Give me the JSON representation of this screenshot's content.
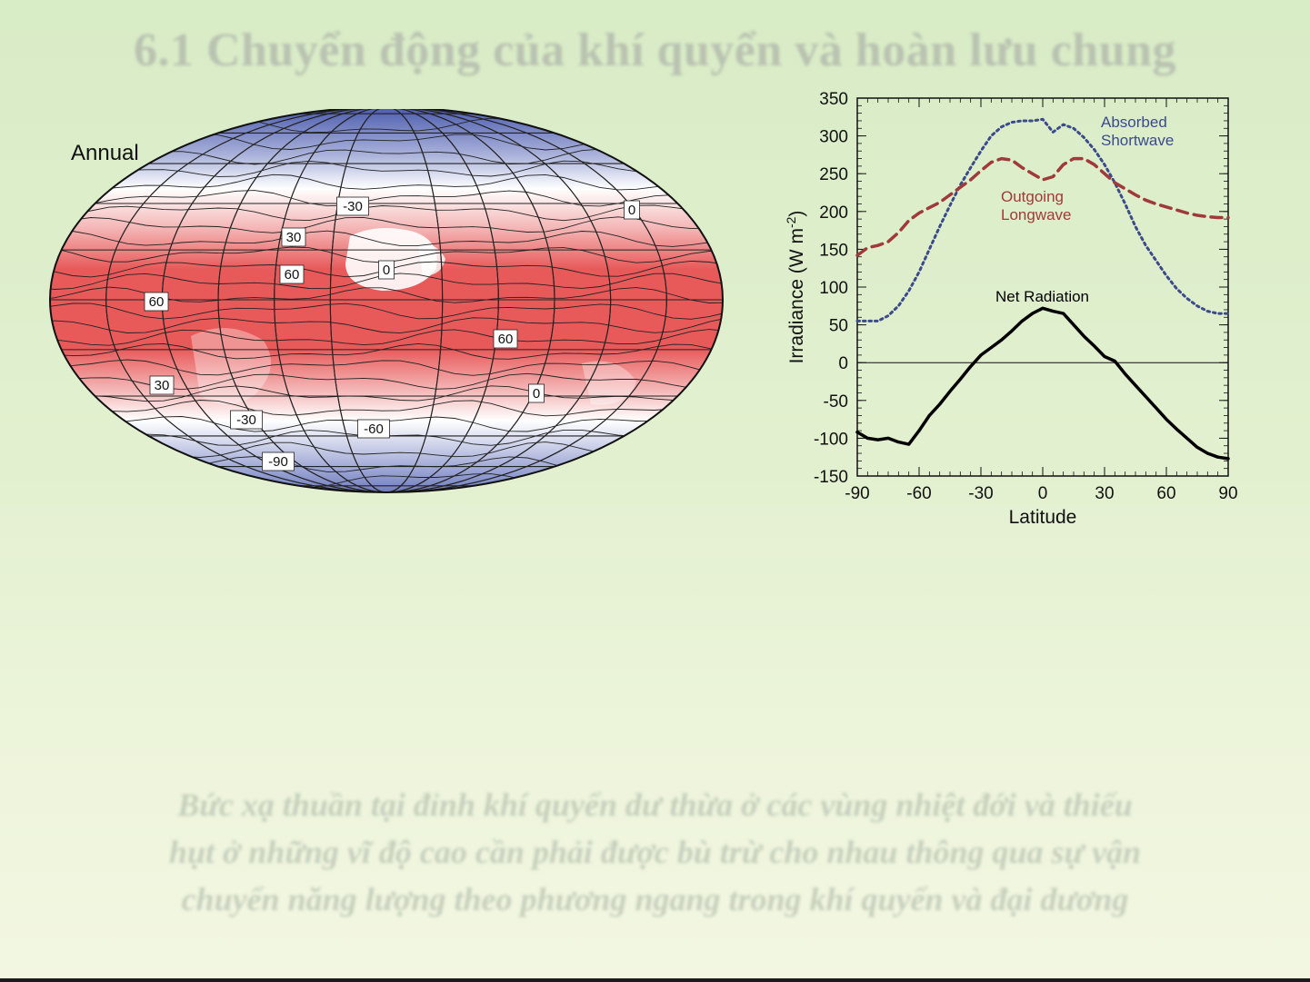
{
  "slide": {
    "title": "6.1 Chuyển động của khí quyển và hoàn lưu chung",
    "caption_lines": [
      "Bức xạ thuần tại đỉnh khí quyển dư thừa ở các vùng nhiệt đới và thiếu",
      "hụt ở những vĩ độ cao cần phải được bù trừ cho nhau thông qua sự vận",
      "chuyển năng lượng theo phương ngang trong khí quyển và đại dương"
    ]
  },
  "map": {
    "title": "Annual",
    "contour_labels": [
      "-30",
      "0",
      "30",
      "60",
      "0",
      "60",
      "60",
      "30",
      "-30",
      "-60",
      "-90",
      "0"
    ],
    "colors": {
      "positive": "#e85a5a",
      "negative": "#4f5fb0",
      "zero": "#ffffff"
    }
  },
  "chart_data": {
    "type": "line",
    "xlabel": "Latitude",
    "ylabel": "Irradiance (W m-2)",
    "xlim": [
      -90,
      90
    ],
    "ylim": [
      -150,
      350
    ],
    "xticks": [
      "-90",
      "-60",
      "-30",
      "0",
      "30",
      "60",
      "90"
    ],
    "yticks": [
      "350",
      "300",
      "250",
      "200",
      "150",
      "100",
      "50",
      "0",
      "-50",
      "-100",
      "-150"
    ],
    "series": [
      {
        "name": "Absorbed Shortwave",
        "label_lines": [
          "Absorbed",
          "Shortwave"
        ],
        "color": "#3c4a8c",
        "style": "dotted",
        "x": [
          -90,
          -80,
          -75,
          -70,
          -65,
          -60,
          -55,
          -50,
          -45,
          -40,
          -35,
          -30,
          -25,
          -20,
          -15,
          -10,
          -5,
          0,
          5,
          10,
          15,
          20,
          25,
          30,
          35,
          40,
          45,
          50,
          55,
          60,
          65,
          70,
          75,
          80,
          85,
          90
        ],
        "y": [
          55,
          55,
          62,
          75,
          95,
          120,
          150,
          180,
          208,
          235,
          258,
          280,
          300,
          312,
          318,
          320,
          320,
          322,
          305,
          315,
          310,
          298,
          282,
          262,
          238,
          210,
          180,
          155,
          135,
          115,
          98,
          85,
          75,
          68,
          65,
          65
        ]
      },
      {
        "name": "Outgoing Longwave",
        "label_lines": [
          "Outgoing",
          "Longwave"
        ],
        "color": "#a03a3a",
        "style": "dashed",
        "x": [
          -90,
          -85,
          -80,
          -75,
          -70,
          -65,
          -60,
          -55,
          -50,
          -45,
          -40,
          -35,
          -30,
          -25,
          -20,
          -15,
          -10,
          -5,
          0,
          5,
          10,
          15,
          20,
          25,
          30,
          35,
          40,
          45,
          50,
          55,
          60,
          65,
          70,
          75,
          80,
          85,
          90
        ],
        "y": [
          142,
          152,
          155,
          160,
          172,
          188,
          198,
          205,
          212,
          222,
          232,
          242,
          254,
          265,
          270,
          268,
          258,
          250,
          242,
          246,
          262,
          270,
          270,
          262,
          250,
          238,
          230,
          222,
          215,
          210,
          206,
          202,
          198,
          195,
          193,
          192,
          192
        ]
      },
      {
        "name": "Net Radiation",
        "label_lines": [
          "Net Radiation"
        ],
        "color": "#000000",
        "style": "solid",
        "x": [
          -90,
          -85,
          -80,
          -75,
          -70,
          -65,
          -60,
          -55,
          -50,
          -45,
          -40,
          -35,
          -30,
          -25,
          -20,
          -15,
          -10,
          -5,
          0,
          5,
          10,
          15,
          20,
          25,
          30,
          35,
          40,
          45,
          50,
          55,
          60,
          65,
          70,
          75,
          80,
          85,
          90
        ],
        "y": [
          -92,
          -100,
          -102,
          -100,
          -105,
          -108,
          -90,
          -70,
          -55,
          -38,
          -22,
          -5,
          10,
          20,
          30,
          42,
          55,
          65,
          72,
          68,
          65,
          50,
          35,
          22,
          8,
          2,
          -15,
          -30,
          -45,
          -60,
          -75,
          -88,
          -100,
          -112,
          -120,
          -125,
          -127
        ]
      }
    ]
  }
}
